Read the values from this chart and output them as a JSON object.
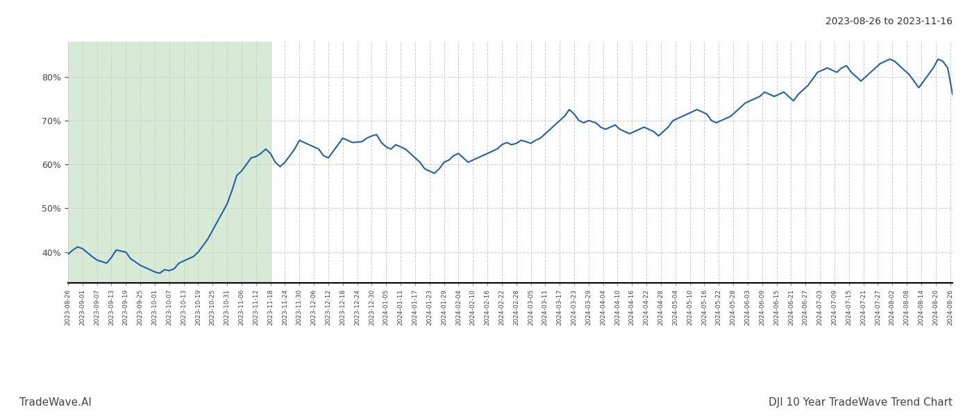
{
  "title_top_right": "2023-08-26 to 2023-11-16",
  "footer_left": "TradeWave.AI",
  "footer_right": "DJI 10 Year TradeWave Trend Chart",
  "highlight_start": "2023-08-26",
  "highlight_end": "2023-11-18",
  "highlight_color": "#d6ead6",
  "line_color": "#2060a8",
  "line_width": 1.5,
  "bg_color": "#ffffff",
  "grid_color": "#cccccc",
  "y_ticks": [
    40,
    50,
    60,
    70,
    80
  ],
  "ylim": [
    33,
    88
  ],
  "dates": [
    "2023-08-26",
    "2023-08-28",
    "2023-08-30",
    "2023-09-01",
    "2023-09-05",
    "2023-09-07",
    "2023-09-11",
    "2023-09-13",
    "2023-09-15",
    "2023-09-19",
    "2023-09-21",
    "2023-09-25",
    "2023-09-27",
    "2023-10-01",
    "2023-10-03",
    "2023-10-05",
    "2023-10-07",
    "2023-10-09",
    "2023-10-11",
    "2023-10-13",
    "2023-10-15",
    "2023-10-17",
    "2023-10-19",
    "2023-10-21",
    "2023-10-23",
    "2023-10-25",
    "2023-10-27",
    "2023-10-29",
    "2023-10-31",
    "2023-11-02",
    "2023-11-04",
    "2023-11-06",
    "2023-11-08",
    "2023-11-10",
    "2023-11-12",
    "2023-11-14",
    "2023-11-16",
    "2023-11-18",
    "2023-11-20",
    "2023-11-22",
    "2023-11-24",
    "2023-11-26",
    "2023-11-28",
    "2023-11-30",
    "2023-12-02",
    "2023-12-04",
    "2023-12-06",
    "2023-12-08",
    "2023-12-10",
    "2023-12-12",
    "2023-12-14",
    "2023-12-16",
    "2023-12-18",
    "2023-12-20",
    "2023-12-22",
    "2023-12-26",
    "2023-12-28",
    "2023-12-30",
    "2024-01-01",
    "2024-01-03",
    "2024-01-05",
    "2024-01-07",
    "2024-01-09",
    "2024-01-11",
    "2024-01-13",
    "2024-01-15",
    "2024-01-17",
    "2024-01-19",
    "2024-01-21",
    "2024-01-23",
    "2024-01-25",
    "2024-01-27",
    "2024-01-29",
    "2024-01-31",
    "2024-02-02",
    "2024-02-04",
    "2024-02-06",
    "2024-02-08",
    "2024-02-10",
    "2024-02-12",
    "2024-02-14",
    "2024-02-16",
    "2024-02-18",
    "2024-02-20",
    "2024-02-22",
    "2024-02-24",
    "2024-02-26",
    "2024-02-28",
    "2024-03-01",
    "2024-03-03",
    "2024-03-05",
    "2024-03-07",
    "2024-03-09",
    "2024-03-11",
    "2024-03-13",
    "2024-03-15",
    "2024-03-17",
    "2024-03-19",
    "2024-03-21",
    "2024-03-23",
    "2024-03-25",
    "2024-03-27",
    "2024-03-29",
    "2024-04-01",
    "2024-04-03",
    "2024-04-05",
    "2024-04-07",
    "2024-04-09",
    "2024-04-11",
    "2024-04-13",
    "2024-04-15",
    "2024-04-17",
    "2024-04-19",
    "2024-04-21",
    "2024-04-23",
    "2024-04-25",
    "2024-04-27",
    "2024-04-29",
    "2024-05-01",
    "2024-05-03",
    "2024-05-05",
    "2024-05-07",
    "2024-05-09",
    "2024-05-11",
    "2024-05-13",
    "2024-05-15",
    "2024-05-17",
    "2024-05-19",
    "2024-05-21",
    "2024-05-23",
    "2024-05-25",
    "2024-05-27",
    "2024-05-29",
    "2024-05-31",
    "2024-06-02",
    "2024-06-04",
    "2024-06-06",
    "2024-06-08",
    "2024-06-10",
    "2024-06-12",
    "2024-06-14",
    "2024-06-16",
    "2024-06-18",
    "2024-06-20",
    "2024-06-22",
    "2024-06-24",
    "2024-06-26",
    "2024-06-28",
    "2024-06-30",
    "2024-07-02",
    "2024-07-04",
    "2024-07-06",
    "2024-07-08",
    "2024-07-10",
    "2024-07-12",
    "2024-07-14",
    "2024-07-16",
    "2024-07-18",
    "2024-07-20",
    "2024-07-22",
    "2024-07-24",
    "2024-07-26",
    "2024-07-28",
    "2024-07-30",
    "2024-08-01",
    "2024-08-03",
    "2024-08-05",
    "2024-08-07",
    "2024-08-09",
    "2024-08-11",
    "2024-08-13",
    "2024-08-15",
    "2024-08-17",
    "2024-08-19",
    "2024-08-21",
    "2024-08-23",
    "2024-08-25",
    "2024-08-27"
  ],
  "values": [
    39.5,
    40.5,
    41.2,
    40.8,
    39.0,
    38.2,
    37.5,
    38.8,
    40.5,
    40.0,
    38.5,
    37.0,
    36.5,
    35.5,
    35.2,
    36.0,
    35.8,
    36.2,
    37.5,
    38.0,
    38.5,
    39.0,
    40.0,
    41.5,
    43.0,
    45.0,
    47.0,
    49.0,
    51.0,
    54.0,
    57.5,
    58.5,
    60.0,
    61.5,
    61.8,
    62.5,
    63.5,
    62.5,
    60.5,
    59.5,
    60.5,
    62.0,
    63.5,
    65.5,
    65.0,
    64.5,
    64.0,
    63.5,
    62.0,
    61.5,
    63.0,
    64.5,
    66.0,
    65.5,
    65.0,
    65.2,
    66.0,
    66.5,
    66.8,
    65.0,
    64.0,
    63.5,
    64.5,
    64.0,
    63.5,
    62.5,
    61.5,
    60.5,
    59.0,
    58.5,
    58.0,
    59.0,
    60.5,
    61.0,
    62.0,
    62.5,
    61.5,
    60.5,
    61.0,
    61.5,
    62.0,
    62.5,
    63.0,
    63.5,
    64.5,
    65.0,
    64.5,
    64.8,
    65.5,
    65.2,
    64.8,
    65.5,
    66.0,
    67.0,
    68.0,
    69.0,
    70.0,
    71.0,
    72.5,
    71.5,
    70.0,
    69.5,
    70.0,
    69.5,
    68.5,
    68.0,
    68.5,
    69.0,
    68.0,
    67.5,
    67.0,
    67.5,
    68.0,
    68.5,
    68.0,
    67.5,
    66.5,
    67.5,
    68.5,
    70.0,
    70.5,
    71.0,
    71.5,
    72.0,
    72.5,
    72.0,
    71.5,
    70.0,
    69.5,
    70.0,
    70.5,
    71.0,
    72.0,
    73.0,
    74.0,
    74.5,
    75.0,
    75.5,
    76.5,
    76.0,
    75.5,
    76.0,
    76.5,
    75.5,
    74.5,
    76.0,
    77.0,
    78.0,
    79.5,
    81.0,
    81.5,
    82.0,
    81.5,
    81.0,
    82.0,
    82.5,
    81.0,
    80.0,
    79.0,
    80.0,
    81.0,
    82.0,
    83.0,
    83.5,
    84.0,
    83.5,
    82.5,
    81.5,
    80.5,
    79.0,
    77.5,
    79.0,
    80.5,
    82.0,
    84.0,
    83.5,
    82.0,
    76.0
  ],
  "xtick_dates": [
    "2023-08-26",
    "2023-09-01",
    "2023-09-07",
    "2023-09-13",
    "2023-09-19",
    "2023-09-25",
    "2023-10-01",
    "2023-10-07",
    "2023-10-13",
    "2023-10-19",
    "2023-10-25",
    "2023-10-31",
    "2023-11-06",
    "2023-11-12",
    "2023-11-18",
    "2023-11-24",
    "2023-11-30",
    "2023-12-06",
    "2023-12-12",
    "2023-12-18",
    "2023-12-24",
    "2023-12-30",
    "2024-01-05",
    "2024-01-11",
    "2024-01-17",
    "2024-01-23",
    "2024-01-29",
    "2024-02-04",
    "2024-02-10",
    "2024-02-16",
    "2024-02-22",
    "2024-02-28",
    "2024-03-05",
    "2024-03-11",
    "2024-03-17",
    "2024-03-23",
    "2024-03-29",
    "2024-04-04",
    "2024-04-10",
    "2024-04-16",
    "2024-04-22",
    "2024-04-28",
    "2024-05-04",
    "2024-05-10",
    "2024-05-16",
    "2024-05-22",
    "2024-05-28",
    "2024-06-03",
    "2024-06-09",
    "2024-06-15",
    "2024-06-21",
    "2024-06-27",
    "2024-07-03",
    "2024-07-09",
    "2024-07-15",
    "2024-07-21",
    "2024-07-27",
    "2024-08-02",
    "2024-08-08",
    "2024-08-14",
    "2024-08-20",
    "2024-08-26"
  ]
}
